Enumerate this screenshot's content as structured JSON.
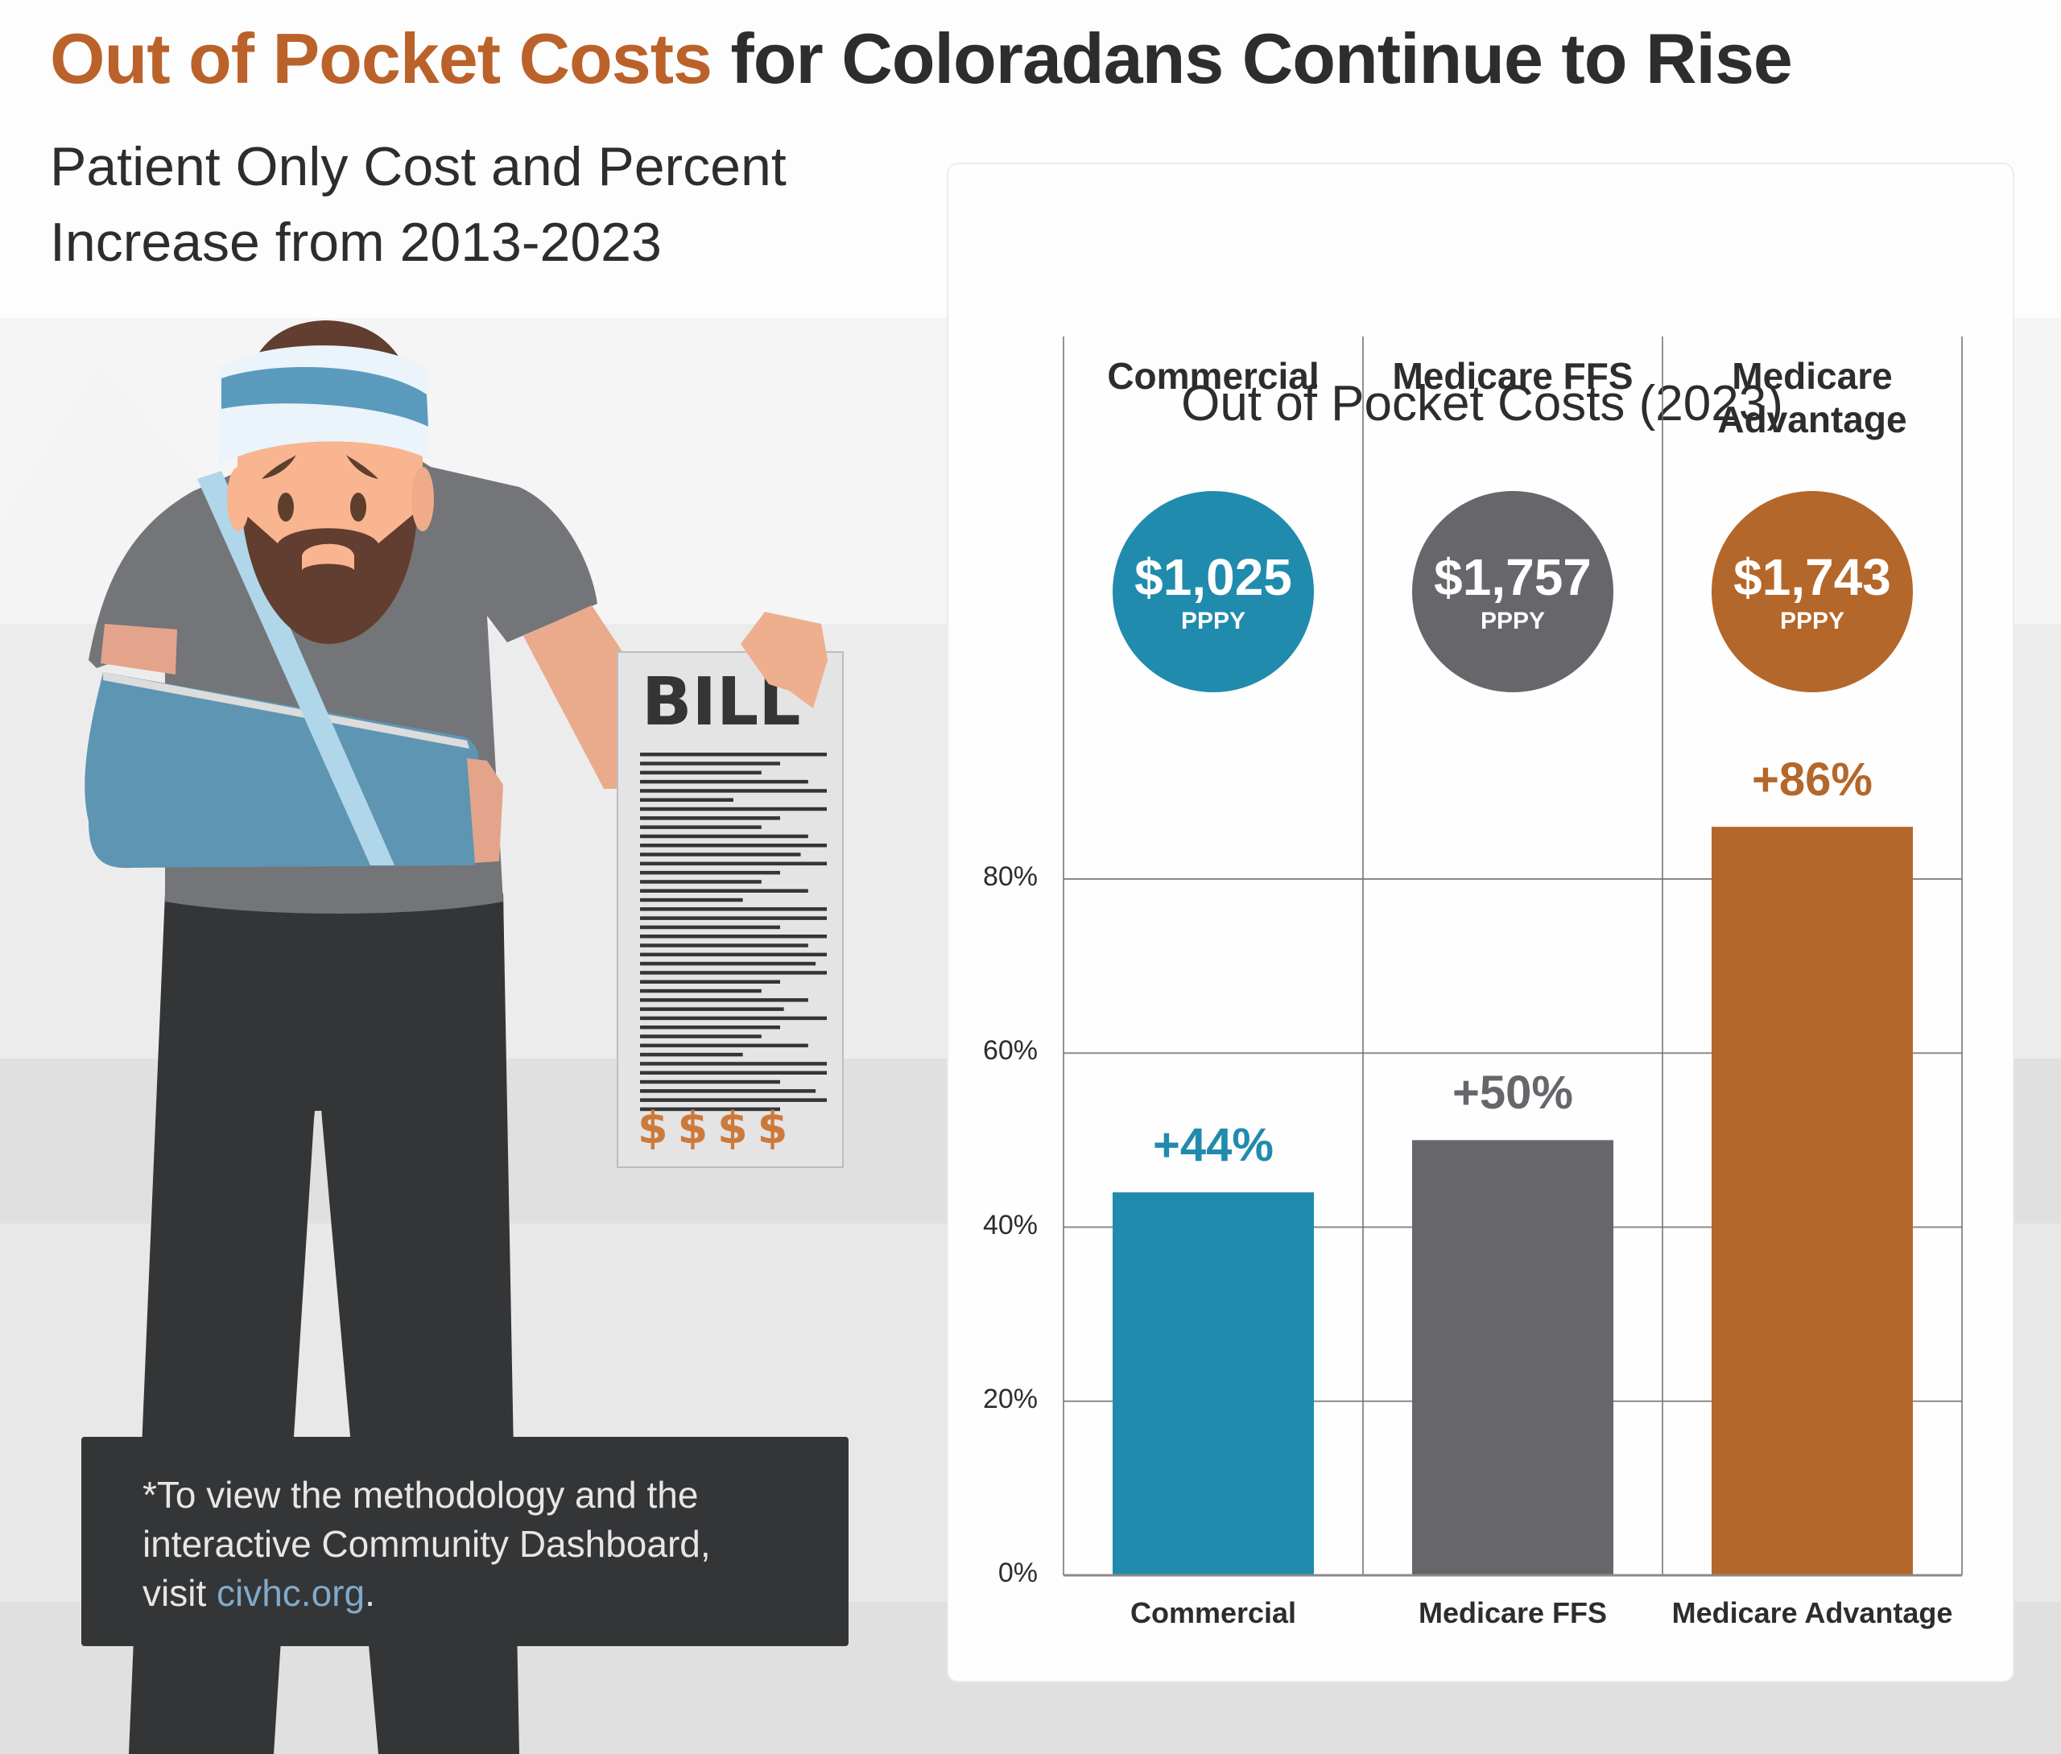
{
  "header": {
    "title_accent": "Out of Pocket Costs",
    "title_rest": " for Coloradans Continue to Rise",
    "subtitle_line1": "Patient Only Cost and Percent",
    "subtitle_line2": "Increase from 2013-2023"
  },
  "illustration": {
    "bill_heading": "BILL",
    "bill_symbols": "$$$$"
  },
  "footnote": {
    "line1": "*To view the methodology and the",
    "line2": "interactive Community Dashboard,",
    "line3_prefix": "visit ",
    "link": "civhc.org",
    "line3_suffix": "."
  },
  "colors": {
    "commercial": "#208bad",
    "medicare_ffs": "#67666b",
    "medicare_advantage": "#b4672a",
    "title_accent": "#bb622a",
    "text_dark": "#2d2d2f",
    "link": "#7faacb"
  },
  "chart_data": {
    "type": "bar",
    "title": "Out of Pocket Costs (2023)",
    "xlabel": "",
    "ylabel": "",
    "categories": [
      "Commercial",
      "Medicare FFS",
      "Medicare Advantage"
    ],
    "column_headers": [
      [
        "Commercial"
      ],
      [
        "Medicare FFS"
      ],
      [
        "Medicare",
        "Advantage"
      ]
    ],
    "values": [
      44,
      50,
      86
    ],
    "value_labels": [
      "+44%",
      "+50%",
      "+86%"
    ],
    "cost_2023": [
      "$1,025",
      "$1,757",
      "$1,743"
    ],
    "cost_unit": "PPPY",
    "ylim": [
      0,
      100
    ],
    "yticks": [
      0,
      20,
      40,
      60,
      80
    ],
    "ytick_labels": [
      "0%",
      "20%",
      "40%",
      "60%",
      "80%"
    ],
    "grid": true,
    "legend": "none"
  }
}
